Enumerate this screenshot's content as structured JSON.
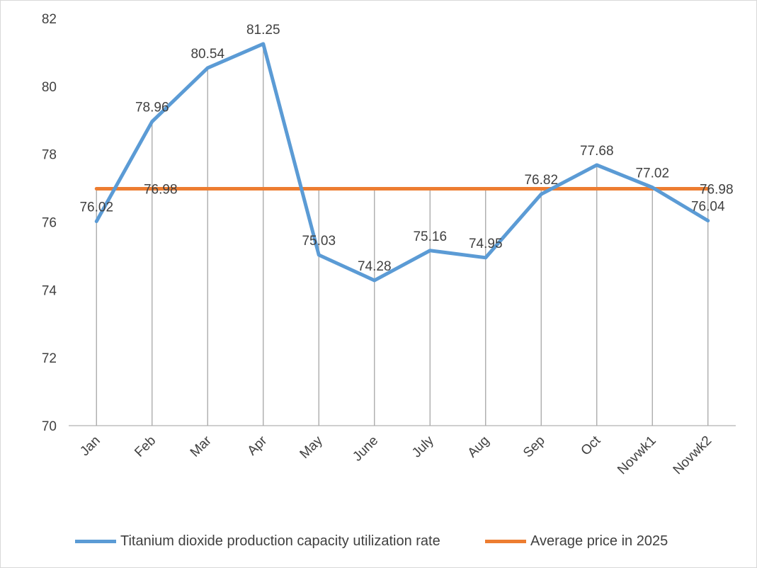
{
  "chart_data": {
    "type": "line",
    "categories": [
      "Jan",
      "Feb",
      "Mar",
      "Apr",
      "May",
      "June",
      "July",
      "Aug",
      "Sep",
      "Oct",
      "Novwk1",
      "Novwk2"
    ],
    "series": [
      {
        "name": "Titanium dioxide production capacity utilization rate",
        "color": "#5b9bd5",
        "values": [
          76.02,
          78.96,
          80.54,
          81.25,
          75.03,
          74.28,
          75.16,
          74.95,
          76.82,
          77.68,
          77.02,
          76.04
        ],
        "labels": [
          "76.02",
          "78.96",
          "80.54",
          "81.25",
          "75.03",
          "74.28",
          "75.16",
          "74.95",
          "76.82",
          "77.68",
          "77.02",
          "76.04"
        ]
      },
      {
        "name": "Average price in 2025",
        "color": "#ed7d31",
        "values": [
          76.98,
          76.98,
          76.98,
          76.98,
          76.98,
          76.98,
          76.98,
          76.98,
          76.98,
          76.98,
          76.98,
          76.98
        ],
        "labels": [
          "",
          "76.98",
          "",
          "",
          "",
          "",
          "",
          "",
          "",
          "",
          "",
          "76.98"
        ]
      }
    ],
    "ylim": [
      70,
      82
    ],
    "yticks": [
      "70",
      "72",
      "74",
      "76",
      "78",
      "80",
      "82"
    ],
    "drop_lines": true,
    "grid": false,
    "legend_position": "bottom"
  }
}
